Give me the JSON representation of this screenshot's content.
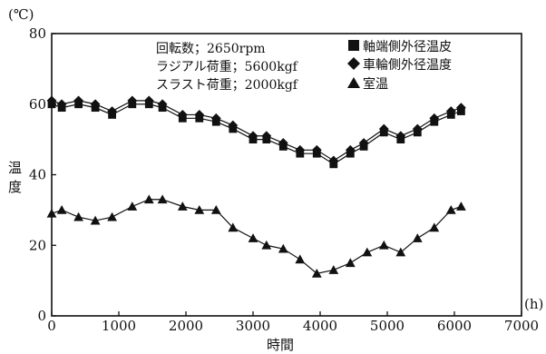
{
  "chart_data": {
    "type": "line",
    "xlabel": "時間",
    "xunit": "(h)",
    "ylabel": "温度",
    "yunit": "(℃)",
    "xlim": [
      0,
      7000
    ],
    "ylim": [
      0,
      80
    ],
    "xticks": [
      0,
      1000,
      2000,
      3000,
      4000,
      5000,
      6000,
      7000
    ],
    "yticks": [
      0,
      20,
      40,
      60,
      80
    ],
    "grid": false,
    "legend_position": "top-right",
    "annotations": [
      "回転数；2650rpm",
      "ラジアル荷重；5600kgf",
      "スラスト荷重；2000kgf"
    ],
    "series": [
      {
        "name": "軸端側外径温皮",
        "marker": "square",
        "color": "#111111",
        "x": [
          0,
          150,
          400,
          650,
          900,
          1200,
          1450,
          1650,
          1950,
          2200,
          2450,
          2700,
          3000,
          3200,
          3450,
          3700,
          3950,
          4200,
          4450,
          4650,
          4950,
          5200,
          5450,
          5700,
          5950,
          6100
        ],
        "y": [
          60,
          59,
          60,
          59,
          57,
          60,
          60,
          59,
          56,
          56,
          55,
          53,
          50,
          50,
          48,
          46,
          46,
          43,
          46,
          48,
          52,
          50,
          52,
          55,
          57,
          58
        ]
      },
      {
        "name": "車輪側外径温度",
        "marker": "diamond",
        "color": "#111111",
        "x": [
          0,
          150,
          400,
          650,
          900,
          1200,
          1450,
          1650,
          1950,
          2200,
          2450,
          2700,
          3000,
          3200,
          3450,
          3700,
          3950,
          4200,
          4450,
          4650,
          4950,
          5200,
          5450,
          5700,
          5950,
          6100
        ],
        "y": [
          61,
          60,
          61,
          60,
          58,
          61,
          61,
          60,
          57,
          57,
          56,
          54,
          51,
          51,
          49,
          47,
          47,
          44,
          47,
          49,
          53,
          51,
          53,
          56,
          58,
          59
        ]
      },
      {
        "name": "室温",
        "marker": "triangle",
        "color": "#111111",
        "x": [
          0,
          150,
          400,
          650,
          900,
          1200,
          1450,
          1650,
          1950,
          2200,
          2450,
          2700,
          3000,
          3200,
          3450,
          3700,
          3950,
          4200,
          4450,
          4700,
          4950,
          5200,
          5450,
          5700,
          5950,
          6100
        ],
        "y": [
          29,
          30,
          28,
          27,
          28,
          31,
          33,
          33,
          31,
          30,
          30,
          25,
          22,
          20,
          19,
          16,
          12,
          13,
          15,
          18,
          20,
          18,
          22,
          25,
          30,
          31
        ]
      }
    ]
  }
}
